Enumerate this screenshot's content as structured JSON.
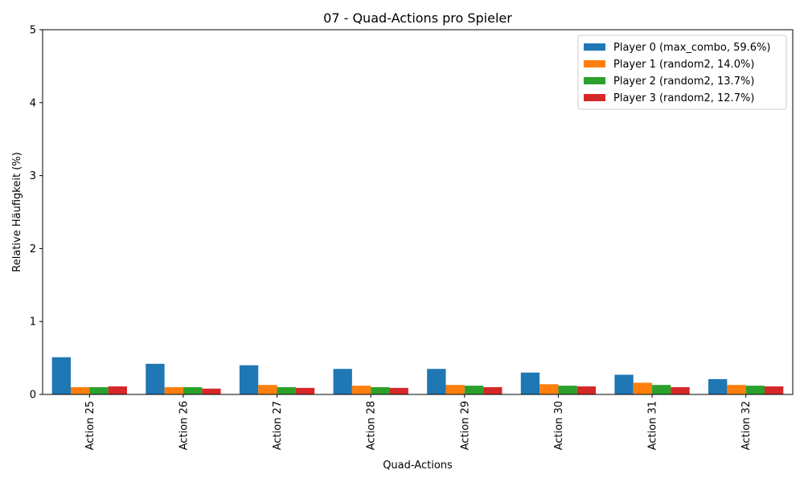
{
  "chart_data": {
    "type": "bar",
    "title": "07 - Quad-Actions pro Spieler",
    "xlabel": "Quad-Actions",
    "ylabel": "Relative Häufigkeit (%)",
    "ylim": [
      0,
      5
    ],
    "yticks": [
      0,
      1,
      2,
      3,
      4,
      5
    ],
    "categories": [
      "Action 25",
      "Action 26",
      "Action 27",
      "Action 28",
      "Action 29",
      "Action 30",
      "Action 31",
      "Action 32"
    ],
    "legend_position": "top-right",
    "grid": false,
    "series": [
      {
        "name": "Player 0 (max_combo, 59.6%)",
        "color": "#1f77b4",
        "values": [
          0.51,
          0.42,
          0.4,
          0.35,
          0.35,
          0.3,
          0.27,
          0.21
        ]
      },
      {
        "name": "Player 1 (random2, 14.0%)",
        "color": "#ff7f0e",
        "values": [
          0.1,
          0.1,
          0.13,
          0.12,
          0.13,
          0.14,
          0.16,
          0.13
        ]
      },
      {
        "name": "Player 2 (random2, 13.7%)",
        "color": "#2ca02c",
        "values": [
          0.1,
          0.1,
          0.1,
          0.1,
          0.12,
          0.12,
          0.13,
          0.12
        ]
      },
      {
        "name": "Player 3 (random2, 12.7%)",
        "color": "#d62728",
        "values": [
          0.11,
          0.08,
          0.09,
          0.09,
          0.1,
          0.11,
          0.1,
          0.11
        ]
      }
    ]
  }
}
